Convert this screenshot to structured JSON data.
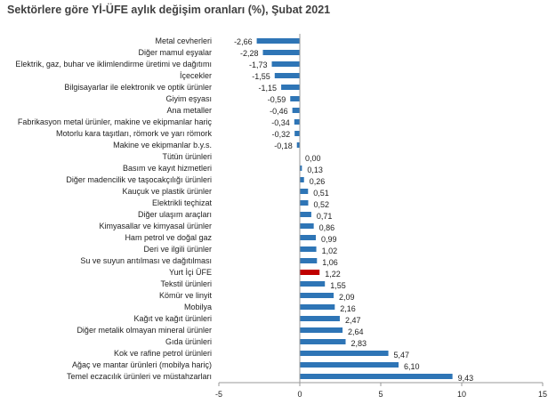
{
  "chart_data": {
    "type": "bar",
    "orientation": "horizontal",
    "title": "Sektörlere göre Yİ-ÜFE aylık değişim oranları (%), Şubat 2021",
    "categories": [
      "Metal cevherleri",
      "Diğer mamul eşyalar",
      "Elektrik, gaz, buhar ve iklimlendirme üretimi ve dağıtımı",
      "İçecekler",
      "Bilgisayarlar ile elektronik ve optik ürünler",
      "Giyim eşyası",
      "Ana metaller",
      "Fabrikasyon metal ürünler, makine ve ekipmanlar hariç",
      "Motorlu kara taşıtları, römork ve yarı römork",
      "Makine ve ekipmanlar b.y.s.",
      "Tütün ürünleri",
      "Basım ve kayıt hizmetleri",
      "Diğer madencilik ve taşocakçılığı ürünleri",
      "Kauçuk ve plastik ürünler",
      "Elektrikli teçhizat",
      "Diğer ulaşım araçları",
      "Kimyasallar ve kimyasal ürünler",
      "Ham petrol ve doğal gaz",
      "Deri ve ilgili ürünler",
      "Su ve suyun arıtılması ve dağıtılması",
      "Yurt İçi ÜFE",
      "Tekstil ürünleri",
      "Kömür ve linyit",
      "Mobilya",
      "Kağıt ve kağıt ürünleri",
      "Diğer metalik olmayan mineral ürünler",
      "Gıda ürünleri",
      "Kok ve rafine petrol ürünleri",
      "Ağaç ve mantar ürünleri (mobilya hariç)",
      "Temel eczacılık ürünleri ve müstahzarları"
    ],
    "values": [
      -2.66,
      -2.28,
      -1.73,
      -1.55,
      -1.15,
      -0.59,
      -0.46,
      -0.34,
      -0.32,
      -0.18,
      0.0,
      0.13,
      0.26,
      0.51,
      0.52,
      0.71,
      0.86,
      0.99,
      1.02,
      1.06,
      1.22,
      1.55,
      2.09,
      2.16,
      2.47,
      2.64,
      2.83,
      5.47,
      6.1,
      9.43
    ],
    "value_labels": [
      "-2,66",
      "-2,28",
      "-1,73",
      "-1,55",
      "-1,15",
      "-0,59",
      "-0,46",
      "-0,34",
      "-0,32",
      "-0,18",
      "0,00",
      "0,13",
      "0,26",
      "0,51",
      "0,52",
      "0,71",
      "0,86",
      "0,99",
      "1,02",
      "1,06",
      "1,22",
      "1,55",
      "2,09",
      "2,16",
      "2,47",
      "2,64",
      "2,83",
      "5,47",
      "6,10",
      "9,43"
    ],
    "highlight_category": "Yurt İçi ÜFE",
    "xlim": [
      -5,
      15
    ],
    "xticks": [
      -5,
      0,
      5,
      10,
      15
    ],
    "grid": false,
    "legend": "none",
    "colors": {
      "bar": "#2e75b6",
      "highlight": "#c00000"
    }
  }
}
